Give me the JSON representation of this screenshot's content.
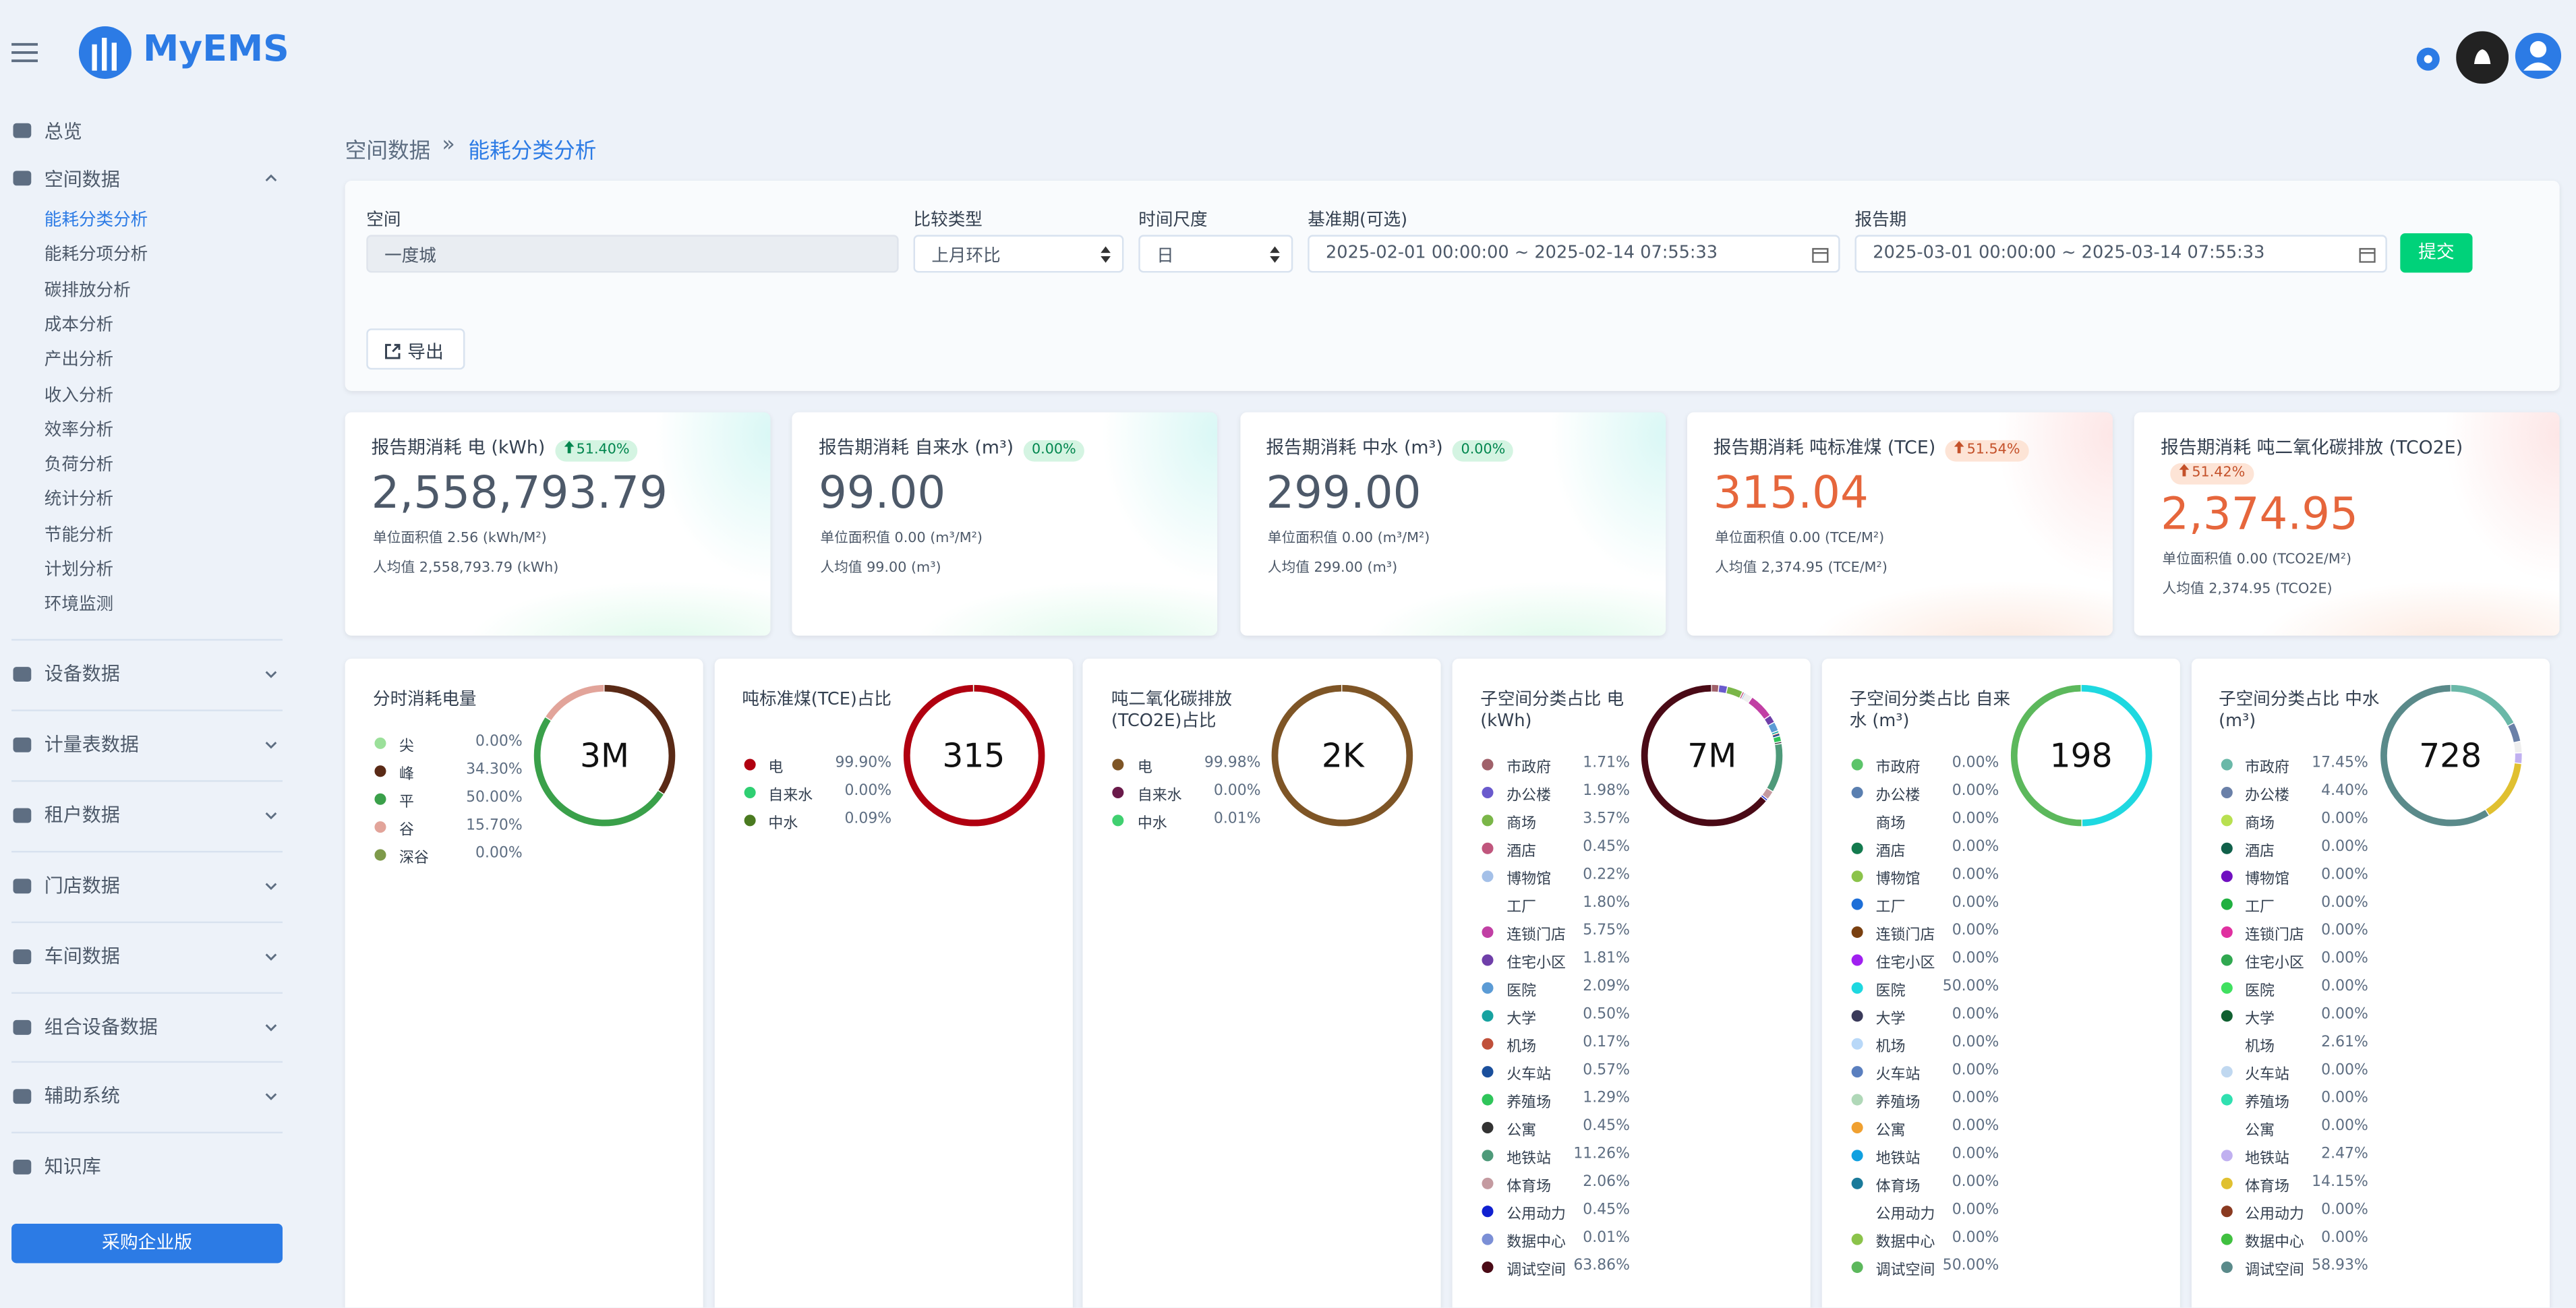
{
  "header": {
    "logo": "MyEMS"
  },
  "sidebar": {
    "top": "总览",
    "space": {
      "label": "空间数据",
      "children": [
        "能耗分类分析",
        "能耗分项分析",
        "碳排放分析",
        "成本分析",
        "产出分析",
        "收入分析",
        "效率分析",
        "负荷分析",
        "统计分析",
        "节能分析",
        "计划分析",
        "环境监测"
      ]
    },
    "groups": [
      "设备数据",
      "计量表数据",
      "租户数据",
      "门店数据",
      "车间数据",
      "组合设备数据",
      "辅助系统",
      "知识库"
    ],
    "cta": "采购企业版"
  },
  "breadcrumb": {
    "parent": "空间数据",
    "separator": "»",
    "current": "能耗分类分析"
  },
  "form": {
    "fields": [
      {
        "label": "空间",
        "value": "一度城"
      },
      {
        "label": "比较类型",
        "value": "上月环比"
      },
      {
        "label": "时间尺度",
        "value": "日"
      },
      {
        "label": "基准期(可选)",
        "value": "2025-02-01 00:00:00 ~ 2025-02-14 07:55:33"
      },
      {
        "label": "报告期",
        "value": "2025-03-01 00:00:00 ~ 2025-03-14 07:55:33"
      }
    ],
    "submit": "提交",
    "export": "导出"
  },
  "kpis": [
    {
      "title": "报告期消耗 电 (kWh)",
      "change": "51.40%",
      "value": "2,558,793.79",
      "per_area": "单位面积值 2.56 (kWh/M²)",
      "per_capita": "人均值 2,558,793.79 (kWh)",
      "color": "#4d5969"
    },
    {
      "title": "报告期消耗 自来水 (m³)",
      "change": "0.00%",
      "value": "99.00",
      "per_area": "单位面积值 0.00 (m³/M²)",
      "per_capita": "人均值 99.00 (m³)",
      "color": "#4d5969"
    },
    {
      "title": "报告期消耗 中水 (m³)",
      "change": "0.00%",
      "value": "299.00",
      "per_area": "单位面积值 0.00 (m³/M²)",
      "per_capita": "人均值 299.00 (m³)",
      "color": "#4d5969"
    },
    {
      "title": "报告期消耗 吨标准煤 (TCE)",
      "change": "51.54%",
      "value": "315.04",
      "per_area": "单位面积值 0.00 (TCE/M²)",
      "per_capita": "人均值 2,374.95 (TCE/M²)",
      "color": "#e6663c"
    },
    {
      "title": "报告期消耗 吨二氧化碳排放 (TCO2E)",
      "change": "51.42%",
      "value": "2,374.95",
      "per_area": "单位面积值 0.00 (TCO2E/M²)",
      "per_capita": "人均值 2,374.95 (TCO2E)",
      "color": "#e6663c"
    }
  ],
  "breakdowns": [
    {
      "title": "分时消耗电量",
      "total": "3M",
      "items": [
        {
          "name": "尖",
          "color": "#9be09a",
          "share": "0.00%"
        },
        {
          "name": "峰",
          "color": "#5a2a16",
          "share": "34.30%"
        },
        {
          "name": "平",
          "color": "#3aa04a",
          "share": "50.00%"
        },
        {
          "name": "谷",
          "color": "#e2a49a",
          "share": "15.70%"
        },
        {
          "name": "深谷",
          "color": "#7e9a4a",
          "share": "0.00%"
        }
      ]
    },
    {
      "title": "吨标准煤(TCE)占比",
      "total": "315",
      "items": [
        {
          "name": "电",
          "color": "#b00010",
          "share": "99.90%"
        },
        {
          "name": "自来水",
          "color": "#2fcf72",
          "share": "0.00%"
        },
        {
          "name": "中水",
          "color": "#4a7a20",
          "share": "0.09%"
        }
      ]
    },
    {
      "title": "吨二氧化碳排放(TCO2E)占比",
      "total": "2K",
      "items": [
        {
          "name": "电",
          "color": "#7e5526",
          "share": "99.98%"
        },
        {
          "name": "自来水",
          "color": "#6a1a4a",
          "share": "0.00%"
        },
        {
          "name": "中水",
          "color": "#40d070",
          "share": "0.01%"
        }
      ]
    },
    {
      "title": "子空间分类占比 电(kWh)",
      "total": "7M",
      "items": [
        {
          "name": "市政府",
          "color": "#a0616a",
          "share": "1.71%"
        },
        {
          "name": "办公楼",
          "color": "#6a5acd",
          "share": "1.98%"
        },
        {
          "name": "商场",
          "color": "#7ab648",
          "share": "3.57%"
        },
        {
          "name": "酒店",
          "color": "#c0567d",
          "share": "0.45%"
        },
        {
          "name": "博物馆",
          "color": "#a4c0e8",
          "share": "0.22%"
        },
        {
          "name": "工厂",
          "color": "#ffffff",
          "share": "1.80%"
        },
        {
          "name": "连锁门店",
          "color": "#c13fa4",
          "share": "5.75%"
        },
        {
          "name": "住宅小区",
          "color": "#6f3fa9",
          "share": "1.81%"
        },
        {
          "name": "医院",
          "color": "#5b9bd5",
          "share": "2.09%"
        },
        {
          "name": "大学",
          "color": "#17a2a0",
          "share": "0.50%"
        },
        {
          "name": "机场",
          "color": "#c0503a",
          "share": "0.17%"
        },
        {
          "name": "火车站",
          "color": "#1a4f9c",
          "share": "0.57%"
        },
        {
          "name": "养殖场",
          "color": "#2fc55a",
          "share": "1.29%"
        },
        {
          "name": "公寓",
          "color": "#333333",
          "share": "0.45%"
        },
        {
          "name": "地铁站",
          "color": "#4e9a7a",
          "share": "11.26%"
        },
        {
          "name": "体育场",
          "color": "#c49aa0",
          "share": "2.06%"
        },
        {
          "name": "公用动力",
          "color": "#1020d0",
          "share": "0.45%"
        },
        {
          "name": "数据中心",
          "color": "#7b8fd6",
          "share": "0.01%"
        },
        {
          "name": "调试空间",
          "color": "#4a0a16",
          "share": "63.86%"
        }
      ]
    },
    {
      "title": "子空间分类占比 自来水 (m³)",
      "total": "198",
      "items": [
        {
          "name": "市政府",
          "color": "#5cc46a",
          "share": "0.00%"
        },
        {
          "name": "办公楼",
          "color": "#5a7fb0",
          "share": "0.00%"
        },
        {
          "name": "商场",
          "color": "#ffffff",
          "share": "0.00%"
        },
        {
          "name": "酒店",
          "color": "#137a4e",
          "share": "0.00%"
        },
        {
          "name": "博物馆",
          "color": "#8bc34a",
          "share": "0.00%"
        },
        {
          "name": "工厂",
          "color": "#1e6fd8",
          "share": "0.00%"
        },
        {
          "name": "连锁门店",
          "color": "#7a4010",
          "share": "0.00%"
        },
        {
          "name": "住宅小区",
          "color": "#a020f0",
          "share": "0.00%"
        },
        {
          "name": "医院",
          "color": "#1ed8e0",
          "share": "50.00%"
        },
        {
          "name": "大学",
          "color": "#3a3a5a",
          "share": "0.00%"
        },
        {
          "name": "机场",
          "color": "#b8d8f8",
          "share": "0.00%"
        },
        {
          "name": "火车站",
          "color": "#5a7fbf",
          "share": "0.00%"
        },
        {
          "name": "养殖场",
          "color": "#b0d8b8",
          "share": "0.00%"
        },
        {
          "name": "公寓",
          "color": "#f0a030",
          "share": "0.00%"
        },
        {
          "name": "地铁站",
          "color": "#10a0e0",
          "share": "0.00%"
        },
        {
          "name": "体育场",
          "color": "#1a7a9a",
          "share": "0.00%"
        },
        {
          "name": "公用动力",
          "color": "#ffffff",
          "share": "0.00%"
        },
        {
          "name": "数据中心",
          "color": "#8bc34a",
          "share": "0.00%"
        },
        {
          "name": "调试空间",
          "color": "#5cb85c",
          "share": "50.00%"
        }
      ]
    },
    {
      "title": "子空间分类占比 中水 (m³)",
      "total": "728",
      "items": [
        {
          "name": "市政府",
          "color": "#6ab8a8",
          "share": "17.45%"
        },
        {
          "name": "办公楼",
          "color": "#6a80a8",
          "share": "4.40%"
        },
        {
          "name": "商场",
          "color": "#b8e050",
          "share": "0.00%"
        },
        {
          "name": "酒店",
          "color": "#10604a",
          "share": "0.00%"
        },
        {
          "name": "博物馆",
          "color": "#7010c0",
          "share": "0.00%"
        },
        {
          "name": "工厂",
          "color": "#20b040",
          "share": "0.00%"
        },
        {
          "name": "连锁门店",
          "color": "#e030a0",
          "share": "0.00%"
        },
        {
          "name": "住宅小区",
          "color": "#30a850",
          "share": "0.00%"
        },
        {
          "name": "医院",
          "color": "#40e060",
          "share": "0.00%"
        },
        {
          "name": "大学",
          "color": "#106030",
          "share": "0.00%"
        },
        {
          "name": "机场",
          "color": "#ffffff",
          "share": "2.61%"
        },
        {
          "name": "火车站",
          "color": "#c0d8f0",
          "share": "0.00%"
        },
        {
          "name": "养殖场",
          "color": "#30e0b0",
          "share": "0.00%"
        },
        {
          "name": "公寓",
          "color": "#ffffff",
          "share": "0.00%"
        },
        {
          "name": "地铁站",
          "color": "#c0b0f0",
          "share": "2.47%"
        },
        {
          "name": "体育场",
          "color": "#e0c030",
          "share": "14.15%"
        },
        {
          "name": "公用动力",
          "color": "#8a3a20",
          "share": "0.00%"
        },
        {
          "name": "数据中心",
          "color": "#40c040",
          "share": "0.00%"
        },
        {
          "name": "调试空间",
          "color": "#5a8a8a",
          "share": "58.93%"
        }
      ]
    }
  ]
}
